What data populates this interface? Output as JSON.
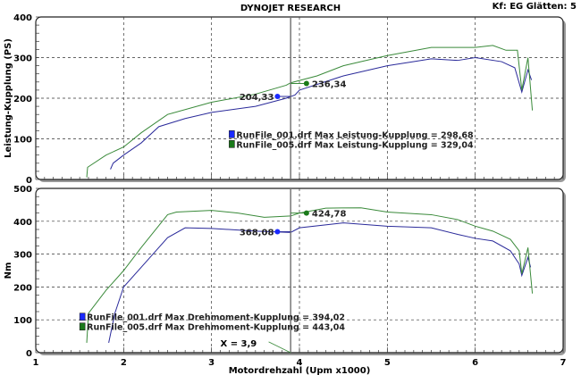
{
  "header": {
    "title": "DYNOJET RESEARCH",
    "info": "Kf: EG  Glätten: 5"
  },
  "colors": {
    "run001": "#2a2a9a",
    "run005": "#3a8a3a",
    "marker001": "#1a2aff",
    "marker005": "#1a7a1a",
    "cursor": "#777777"
  },
  "cursor": {
    "x": 3.9,
    "label": "X = 3,9"
  },
  "chart_data": [
    {
      "type": "line",
      "ylabel": "Leistung-Kupplung (PS)",
      "xlim": [
        1,
        7
      ],
      "ylim": [
        0,
        400
      ],
      "yticks": [
        "0",
        "100",
        "200",
        "300",
        "400"
      ],
      "grid": true,
      "series": [
        {
          "name": "RunFile_001.drf",
          "legend": "RunFile_001.drf Max Leistung-Kupplung = 298,68",
          "points": [
            [
              1.85,
              25
            ],
            [
              1.88,
              40
            ],
            [
              2.0,
              60
            ],
            [
              2.2,
              90
            ],
            [
              2.4,
              130
            ],
            [
              2.7,
              150
            ],
            [
              3.0,
              165
            ],
            [
              3.5,
              180
            ],
            [
              3.85,
              200
            ],
            [
              3.95,
              208
            ],
            [
              4.0,
              220
            ],
            [
              4.5,
              255
            ],
            [
              5.0,
              280
            ],
            [
              5.3,
              290
            ],
            [
              5.5,
              297
            ],
            [
              5.8,
              293
            ],
            [
              6.0,
              300
            ],
            [
              6.3,
              290
            ],
            [
              6.45,
              275
            ],
            [
              6.53,
              215
            ],
            [
              6.6,
              270
            ],
            [
              6.64,
              245
            ]
          ],
          "marker": {
            "x": 3.75,
            "y": 204.33,
            "label": "204,33"
          }
        },
        {
          "name": "RunFile_005.drf",
          "legend": "RunFile_005.drf Max Leistung-Kupplung = 329,04",
          "points": [
            [
              1.58,
              5
            ],
            [
              1.59,
              30
            ],
            [
              1.8,
              60
            ],
            [
              2.0,
              80
            ],
            [
              2.2,
              115
            ],
            [
              2.5,
              160
            ],
            [
              3.0,
              190
            ],
            [
              3.5,
              210
            ],
            [
              3.85,
              232
            ],
            [
              3.9,
              238
            ],
            [
              4.2,
              255
            ],
            [
              4.5,
              280
            ],
            [
              4.8,
              295
            ],
            [
              5.0,
              305
            ],
            [
              5.5,
              325
            ],
            [
              6.0,
              325
            ],
            [
              6.2,
              330
            ],
            [
              6.35,
              318
            ],
            [
              6.48,
              318
            ],
            [
              6.53,
              220
            ],
            [
              6.6,
              300
            ],
            [
              6.65,
              170
            ]
          ],
          "marker": {
            "x": 4.08,
            "y": 236.34,
            "label": "236,34"
          }
        }
      ]
    },
    {
      "type": "line",
      "ylabel": "Nm",
      "xlabel": "Motordrehzahl (Upm x1000)",
      "xlim": [
        1,
        7
      ],
      "ylim": [
        0,
        500
      ],
      "xticks": [
        "1",
        "2",
        "3",
        "4",
        "5",
        "6",
        "7"
      ],
      "yticks": [
        "0",
        "100",
        "200",
        "300",
        "400",
        "500"
      ],
      "grid": true,
      "series": [
        {
          "name": "RunFile_001.drf",
          "legend": "RunFile_001.drf Max Drehmoment-Kupplung = 394,02",
          "points": [
            [
              1.83,
              30
            ],
            [
              1.9,
              120
            ],
            [
              2.0,
              200
            ],
            [
              2.3,
              290
            ],
            [
              2.5,
              350
            ],
            [
              2.7,
              380
            ],
            [
              3.0,
              378
            ],
            [
              3.5,
              370
            ],
            [
              3.9,
              366
            ],
            [
              4.0,
              380
            ],
            [
              4.5,
              395
            ],
            [
              5.0,
              385
            ],
            [
              5.5,
              380
            ],
            [
              5.8,
              360
            ],
            [
              6.0,
              348
            ],
            [
              6.2,
              340
            ],
            [
              6.4,
              310
            ],
            [
              6.5,
              270
            ],
            [
              6.53,
              235
            ],
            [
              6.6,
              290
            ],
            [
              6.63,
              260
            ]
          ],
          "marker": {
            "x": 3.75,
            "y": 368.08,
            "label": "368,08"
          }
        },
        {
          "name": "RunFile_005.drf",
          "legend": "RunFile_005.drf Max Drehmoment-Kupplung = 443,04",
          "points": [
            [
              1.58,
              30
            ],
            [
              1.6,
              120
            ],
            [
              1.8,
              190
            ],
            [
              2.0,
              250
            ],
            [
              2.2,
              320
            ],
            [
              2.5,
              420
            ],
            [
              2.6,
              428
            ],
            [
              3.0,
              433
            ],
            [
              3.3,
              425
            ],
            [
              3.6,
              412
            ],
            [
              3.9,
              416
            ],
            [
              4.0,
              425
            ],
            [
              4.3,
              440
            ],
            [
              4.7,
              441
            ],
            [
              5.0,
              428
            ],
            [
              5.5,
              420
            ],
            [
              5.8,
              405
            ],
            [
              6.0,
              385
            ],
            [
              6.2,
              370
            ],
            [
              6.4,
              345
            ],
            [
              6.5,
              310
            ],
            [
              6.53,
              240
            ],
            [
              6.6,
              320
            ],
            [
              6.65,
              180
            ]
          ],
          "marker": {
            "x": 4.08,
            "y": 424.78,
            "label": "424,78"
          }
        }
      ]
    }
  ]
}
